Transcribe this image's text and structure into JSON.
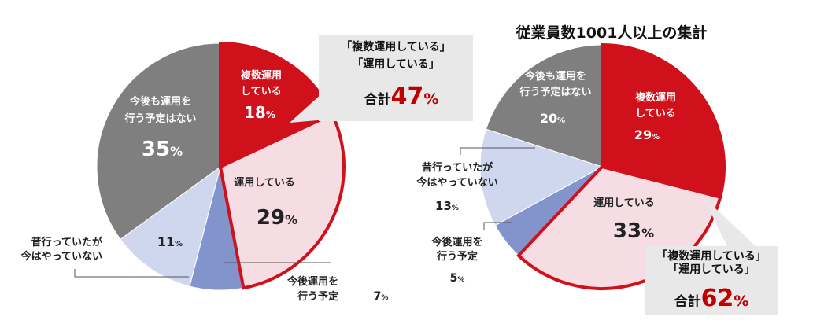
{
  "colors": {
    "red": "#d0101b",
    "pink": "#f6dde3",
    "lightblue": "#cfd7ee",
    "blue": "#8394cc",
    "gray": "#7f7f7f",
    "callout_bg": "#e8e8e8",
    "accent_text": "#c00000"
  },
  "chart_data": [
    {
      "type": "pie",
      "title": "",
      "slices": [
        {
          "label": "複数運用している",
          "value": 18,
          "value_label": "18%",
          "color": "red",
          "highlighted": true
        },
        {
          "label": "運用している",
          "value": 29,
          "value_label": "29%",
          "color": "pink",
          "highlighted": true
        },
        {
          "label": "今後運用を行う予定",
          "value": 7,
          "value_label": "7%",
          "color": "blue",
          "highlighted": false
        },
        {
          "label": "昔行っていたが今はやっていない",
          "value": 11,
          "value_label": "11%",
          "color": "lightblue",
          "highlighted": false
        },
        {
          "label": "今後も運用を行う予定はない",
          "value": 35,
          "value_label": "35%",
          "color": "gray",
          "highlighted": false
        }
      ],
      "callout": {
        "lines": [
          "「複数運用している」",
          "「運用している」"
        ],
        "total_prefix": "合計",
        "total_value": "47",
        "total_unit": "%"
      }
    },
    {
      "type": "pie",
      "title": "従業員数1001人以上の集計",
      "slices": [
        {
          "label": "複数運用している",
          "value": 29,
          "value_label": "29%",
          "color": "red",
          "highlighted": true
        },
        {
          "label": "運用している",
          "value": 33,
          "value_label": "33%",
          "color": "pink",
          "highlighted": true
        },
        {
          "label": "今後運用を行う予定",
          "value": 5,
          "value_label": "5%",
          "color": "blue",
          "highlighted": false
        },
        {
          "label": "昔行っていたが今はやっていない",
          "value": 13,
          "value_label": "13%",
          "color": "lightblue",
          "highlighted": false
        },
        {
          "label": "今後も運用を行う予定はない",
          "value": 20,
          "value_label": "20%",
          "color": "gray",
          "highlighted": false
        }
      ],
      "callout": {
        "lines": [
          "「複数運用している」",
          "「運用している」"
        ],
        "total_prefix": "合計",
        "total_value": "62",
        "total_unit": "%"
      }
    }
  ]
}
